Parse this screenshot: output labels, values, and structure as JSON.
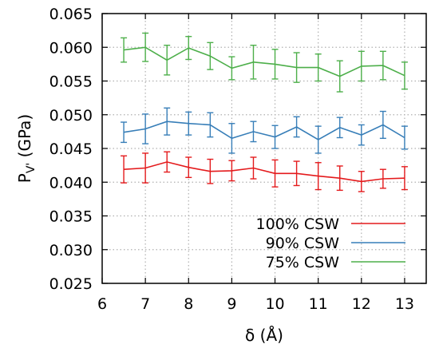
{
  "chart_data": {
    "type": "line",
    "title": "",
    "xlabel": "δ (Å)",
    "ylabel": "P_V' (GPa)",
    "ylabel_parts": {
      "base": "P",
      "sub": "V'",
      "rest": " (GPa)"
    },
    "xlim": [
      6,
      13.5
    ],
    "ylim": [
      0.025,
      0.065
    ],
    "x_ticks": [
      6,
      7,
      8,
      9,
      10,
      11,
      12,
      13
    ],
    "y_ticks": [
      0.025,
      0.03,
      0.035,
      0.04,
      0.045,
      0.05,
      0.055,
      0.06,
      0.065
    ],
    "x_tick_labels": [
      "6",
      "7",
      "8",
      "9",
      "10",
      "11",
      "12",
      "13"
    ],
    "y_tick_labels": [
      "0.025",
      "0.030",
      "0.035",
      "0.040",
      "0.045",
      "0.050",
      "0.055",
      "0.060",
      "0.065"
    ],
    "grid": true,
    "legend_position": "bottom-right",
    "x": [
      6.5,
      7.0,
      7.5,
      8.0,
      8.5,
      9.0,
      9.5,
      10.0,
      10.5,
      11.0,
      11.5,
      12.0,
      12.5,
      13.0
    ],
    "series": [
      {
        "name": "100% CSW",
        "color": "#e41a1c",
        "values": [
          0.0419,
          0.0421,
          0.043,
          0.0422,
          0.0416,
          0.0417,
          0.0421,
          0.0413,
          0.0413,
          0.0409,
          0.0406,
          0.0401,
          0.0405,
          0.0406
        ],
        "errors": [
          0.002,
          0.0022,
          0.0015,
          0.0015,
          0.0018,
          0.0015,
          0.0016,
          0.002,
          0.0018,
          0.002,
          0.0018,
          0.0015,
          0.0014,
          0.0017
        ]
      },
      {
        "name": "90% CSW",
        "color": "#377eb8",
        "values": [
          0.0474,
          0.0479,
          0.049,
          0.0487,
          0.0485,
          0.0465,
          0.0475,
          0.0467,
          0.0482,
          0.0463,
          0.0481,
          0.047,
          0.0485,
          0.0466
        ],
        "errors": [
          0.0015,
          0.0022,
          0.002,
          0.0017,
          0.0018,
          0.0022,
          0.0015,
          0.0017,
          0.0015,
          0.002,
          0.0015,
          0.0015,
          0.002,
          0.0017
        ]
      },
      {
        "name": "75% CSW",
        "color": "#4daf4a",
        "values": [
          0.0596,
          0.06,
          0.0581,
          0.0599,
          0.0587,
          0.0569,
          0.0578,
          0.0575,
          0.057,
          0.057,
          0.0557,
          0.0572,
          0.0573,
          0.0558
        ],
        "errors": [
          0.0018,
          0.0021,
          0.0022,
          0.0017,
          0.002,
          0.0017,
          0.0025,
          0.0022,
          0.0022,
          0.002,
          0.0023,
          0.0022,
          0.0021,
          0.002
        ]
      }
    ]
  }
}
